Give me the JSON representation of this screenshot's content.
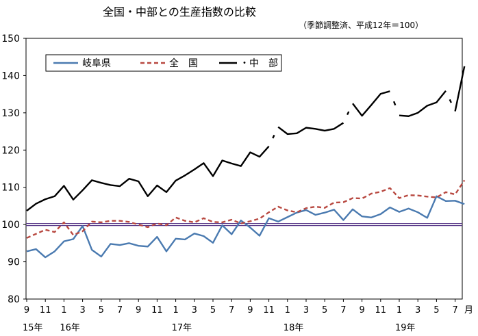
{
  "chart_data": {
    "type": "line",
    "title": "全国・中部との生産指数の比較",
    "subtitle": "（季節調整済、平成12年＝100）",
    "ylim": [
      80,
      150
    ],
    "yticks": [
      80,
      90,
      100,
      110,
      120,
      130,
      140,
      150
    ],
    "x_month_ticks": [
      "9",
      "11",
      "1",
      "3",
      "5",
      "7",
      "9",
      "11",
      "1",
      "3",
      "5",
      "7",
      "9",
      "11",
      "1",
      "3",
      "5",
      "7",
      "9",
      "11",
      "1",
      "3",
      "5",
      "7"
    ],
    "x_unit_label": "月",
    "year_labels": [
      {
        "text": "15年",
        "index": 0
      },
      {
        "text": "16年",
        "index": 4
      },
      {
        "text": "17年",
        "index": 16
      },
      {
        "text": "18年",
        "index": 28
      },
      {
        "text": "19年",
        "index": 40
      }
    ],
    "reference_line": 100,
    "series": [
      {
        "name": "岐阜県",
        "color": "#4a7ab0",
        "style": "solid",
        "values": [
          92.8,
          93.4,
          91.2,
          92.8,
          95.5,
          96.1,
          99.6,
          93.2,
          91.4,
          94.8,
          94.5,
          95.0,
          94.3,
          94.1,
          96.7,
          92.8,
          96.2,
          96.0,
          97.6,
          96.9,
          95.1,
          99.8,
          97.4,
          101.1,
          99.2,
          97.0,
          101.7,
          100.8,
          102.0,
          103.2,
          103.9,
          102.6,
          103.2,
          104.0,
          101.2,
          104.1,
          102.2,
          101.9,
          102.8,
          104.6,
          103.4,
          104.3,
          103.3,
          101.8,
          107.6,
          106.3,
          106.4,
          105.5
        ]
      },
      {
        "name": "全　国",
        "color": "#b84840",
        "style": "dashed",
        "values": [
          96.4,
          97.5,
          98.6,
          98.0,
          100.6,
          97.2,
          98.2,
          100.8,
          100.6,
          101.0,
          101.0,
          100.7,
          100.0,
          99.3,
          100.3,
          99.8,
          101.9,
          101.0,
          100.6,
          101.7,
          100.7,
          100.6,
          101.3,
          100.3,
          100.9,
          101.6,
          103.3,
          104.8,
          103.8,
          103.3,
          104.4,
          104.8,
          104.5,
          105.9,
          106.0,
          107.1,
          107.0,
          108.3,
          108.8,
          109.8,
          107.1,
          107.9,
          107.8,
          107.5,
          107.3,
          108.7,
          108.1,
          111.9
        ]
      },
      {
        "name": "・中　部",
        "color": "#000000",
        "style": "solid-gapped",
        "values": [
          103.7,
          105.6,
          106.8,
          107.6,
          110.4,
          106.7,
          109.2,
          111.9,
          111.2,
          110.6,
          110.3,
          112.3,
          111.6,
          107.6,
          110.5,
          108.7,
          111.8,
          113.2,
          114.8,
          116.5,
          113.0,
          117.2,
          116.4,
          115.7,
          119.4,
          118.2,
          121.0,
          126.2,
          124.3,
          124.5,
          126.0,
          125.7,
          125.2,
          125.7,
          127.3,
          132.5,
          129.2,
          132.1,
          135.1,
          135.8,
          129.3,
          129.1,
          130.0,
          131.9,
          132.8,
          135.9,
          130.4,
          142.5
        ],
        "breaks_after": [
          26,
          34,
          39,
          45
        ]
      }
    ]
  }
}
